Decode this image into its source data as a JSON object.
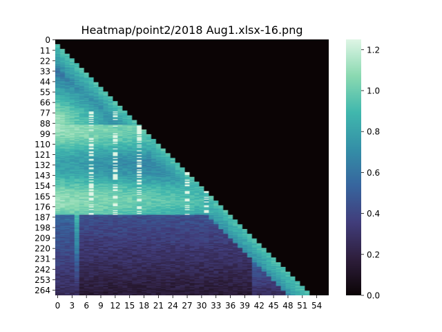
{
  "chart_data": {
    "type": "heatmap",
    "title": "Heatmap/point2/2018 Aug1.xlsx-16.png",
    "xlabel": "",
    "ylabel": "",
    "n_cols": 57,
    "n_rows": 270,
    "x_ticks": [
      "0",
      "3",
      "6",
      "9",
      "12",
      "15",
      "18",
      "21",
      "24",
      "27",
      "30",
      "33",
      "36",
      "39",
      "42",
      "45",
      "48",
      "51",
      "54"
    ],
    "y_ticks": [
      "0",
      "11",
      "22",
      "33",
      "44",
      "55",
      "66",
      "77",
      "88",
      "99",
      "110",
      "121",
      "132",
      "143",
      "154",
      "165",
      "176",
      "187",
      "198",
      "209",
      "220",
      "231",
      "242",
      "253",
      "264"
    ],
    "colorbar": {
      "vmin": 0.0,
      "vmax": 1.25,
      "ticks": [
        "0.0",
        "0.2",
        "0.4",
        "0.6",
        "0.8",
        "1.0",
        "1.2"
      ],
      "colormap": "mako",
      "colors": [
        "#0b0405",
        "#2e1e3c",
        "#413d7b",
        "#37659e",
        "#348fa7",
        "#40b7ad",
        "#8ad9b1",
        "#def5e5"
      ]
    },
    "structure": {
      "lower_triangle": "values present below the diagonal (row ≈ 5 × column); upper-right triangle is 0",
      "band_rows": [
        0,
        270
      ],
      "bright_region": "rows ~90–180 reach ~1.0–1.25 across columns 0–30",
      "dark_region": "rows ~190–270 fall to ~0.1–0.4 in columns 5–40, brighter near the diagonal"
    }
  }
}
